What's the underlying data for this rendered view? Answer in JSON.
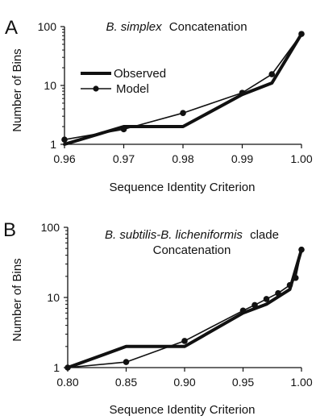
{
  "chart_data": [
    {
      "type": "line",
      "panel_label": "A",
      "title_italic": "B. simplex",
      "title_plain": "Concatenation",
      "xlabel": "Sequence Identity Criterion",
      "ylabel": "Number of Bins",
      "y_scale": "log",
      "xlim": [
        0.96,
        1.0
      ],
      "ylim": [
        1,
        100
      ],
      "x_ticks": [
        "0.96",
        "0.97",
        "0.98",
        "0.99",
        "1.00"
      ],
      "y_ticks": [
        "1",
        "10",
        "100"
      ],
      "legend": {
        "position": "top-left",
        "entries": [
          "Observed",
          "Model"
        ]
      },
      "series": [
        {
          "name": "Observed",
          "style": "thick-line",
          "x": [
            0.96,
            0.97,
            0.98,
            0.99,
            0.995,
            1.0
          ],
          "y": [
            1,
            2,
            2,
            7,
            11,
            75
          ]
        },
        {
          "name": "Model",
          "style": "line-with-markers",
          "x": [
            0.96,
            0.97,
            0.98,
            0.99,
            0.995,
            1.0
          ],
          "y": [
            1.2,
            1.8,
            3.4,
            7.5,
            15.5,
            75
          ]
        }
      ]
    },
    {
      "type": "line",
      "panel_label": "B",
      "title_italic": "B. subtilis-B. licheniformis",
      "title_plain": "clade",
      "title_line2": "Concatenation",
      "xlabel": "Sequence Identity Criterion",
      "ylabel": "Number of Bins",
      "y_scale": "log",
      "xlim": [
        0.8,
        1.0
      ],
      "ylim": [
        1,
        100
      ],
      "x_ticks": [
        "0.80",
        "0.85",
        "0.90",
        "0.95",
        "1.00"
      ],
      "y_ticks": [
        "1",
        "10",
        "100"
      ],
      "series": [
        {
          "name": "Observed",
          "style": "thick-line",
          "x": [
            0.8,
            0.85,
            0.9,
            0.95,
            0.97,
            0.99,
            1.0
          ],
          "y": [
            1,
            2,
            2,
            6,
            8,
            13,
            48
          ]
        },
        {
          "name": "Model",
          "style": "line-with-markers",
          "x": [
            0.8,
            0.85,
            0.9,
            0.95,
            0.96,
            0.97,
            0.98,
            0.99,
            0.995,
            1.0
          ],
          "y": [
            1,
            1.2,
            2.4,
            6.5,
            7.8,
            9.5,
            11.5,
            15,
            19,
            48
          ]
        }
      ]
    }
  ]
}
